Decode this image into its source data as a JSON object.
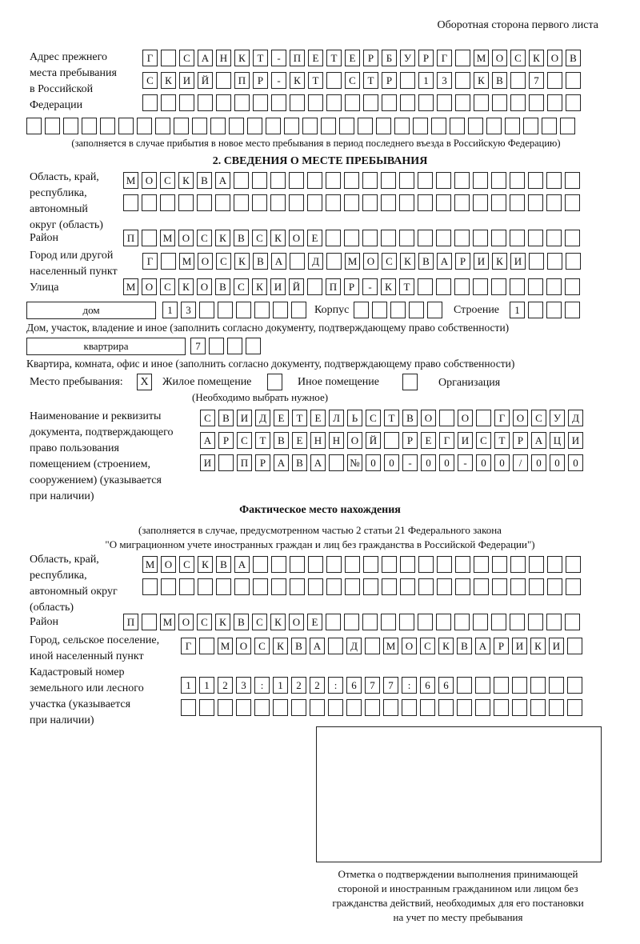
{
  "header": {
    "sheet_side": "Оборотная сторона первого листа"
  },
  "previous_address": {
    "label": "Адрес прежнего\nместа пребывания\nв Российской\nФедерации",
    "rows": [
      "Г САНКТ-ПЕТЕРБУРГ МОСКОВ",
      "СКИЙ ПР-КТ СТР 13 КВ 7",
      "",
      ""
    ],
    "note": "(заполняется в случае прибытия в новое место пребывания в период последнего въезда в Российскую Федерацию)"
  },
  "section2": {
    "title": "2. СВЕДЕНИЯ О МЕСТЕ ПРЕБЫВАНИЯ",
    "region_label": "Область, край,\nреспублика,\nавтономный\nокруг (область)",
    "region_rows": [
      "МОСКВА",
      ""
    ],
    "district_label": "Район",
    "district": "П МОСКВСКОЕ",
    "city_label": "Город или другой\nнаселенный пункт",
    "city": "Г МОСКВА Д МОСКВАРИКИ",
    "street_label": "Улица",
    "street": "МОСКОВСКИЙ ПР-КТ",
    "house_type": "дом",
    "house_number": "13",
    "building_label": "Корпус",
    "building": "",
    "structure_label": "Строение",
    "structure": "1",
    "house_note": "Дом, участок, владение и иное (заполнить согласно документу, подтверждающему право собственности)",
    "apartment_type": "квартрира",
    "apartment_number": "7",
    "apartment_note": "Квартира, комната, офис и иное (заполнить согласно документу, подтверждающему право собственности)",
    "place_label": "Место пребывания:",
    "place_options": [
      {
        "label": "Жилое помещение",
        "mark": "X"
      },
      {
        "label": "Иное помещение",
        "mark": ""
      },
      {
        "label": "Организация",
        "mark": ""
      }
    ],
    "place_note": "(Необходимо выбрать нужное)",
    "document_label": "Наименование и реквизиты\nдокумента, подтверждающего\nправо пользования\nпомещением (строением,\nсооружением) (указывается\nпри наличии)",
    "document_rows": [
      "СВИДЕТЕЛЬСТВО О ГОСУД",
      "АРСТВЕННОЙ РЕГИСТРАЦИ",
      "И ПРАВА №00-00-00/000"
    ]
  },
  "actual": {
    "title": "Фактическое место нахождения",
    "note": "(заполняется в случае, предусмотренном частью 2 статьи 21 Федерального закона\n\"О миграционном учете иностранных граждан и лиц без гражданства в Российской Федерации\")",
    "region_label": "Область, край,\nреспублика,\nавтономный округ\n(область)",
    "region_rows": [
      "МОСКВА",
      ""
    ],
    "district_label": "Район",
    "district": "П МОСКВСКОЕ",
    "city_label": "Город, сельское поселение,\nиной населенный пункт",
    "city": "Г МОСКВА Д МОСКВАРИКИ",
    "cadastral_label": "Кадастровый номер\nземельного или лесного\nучастка (указывается\nпри наличии)",
    "cadastral_rows": [
      "1123:122:677:66",
      ""
    ]
  },
  "confirmation": {
    "caption": "Отметка о подтверждении выполнения принимающей\nстороной и иностранным гражданином или лицом без\nгражданства действий, необходимых для его постановки\nна учет по месту пребывания"
  }
}
